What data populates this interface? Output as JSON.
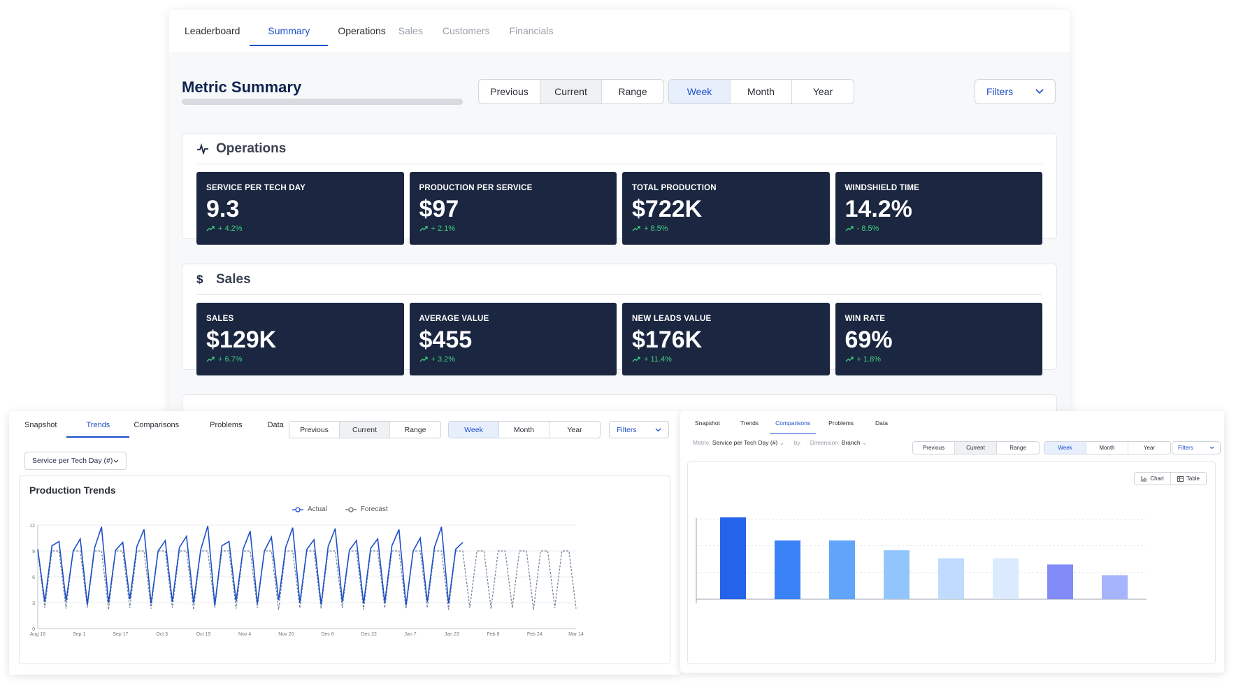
{
  "main": {
    "tabs": [
      {
        "label": "Leaderboard"
      },
      {
        "label": "Summary"
      },
      {
        "label": "Operations"
      },
      {
        "label": "Sales"
      },
      {
        "label": "Customers"
      },
      {
        "label": "Financials"
      }
    ],
    "title": "Metric Summary",
    "period": [
      "Previous",
      "Current",
      "Range"
    ],
    "granularity": [
      "Week",
      "Month",
      "Year"
    ],
    "filters_label": "Filters",
    "operations": {
      "title": "Operations",
      "cards": [
        {
          "label": "SERVICE PER TECH DAY",
          "value": "9.3",
          "delta": "+ 4.2%"
        },
        {
          "label": "PRODUCTION PER SERVICE",
          "value": "$97",
          "delta": "+ 2.1%"
        },
        {
          "label": "TOTAL PRODUCTION",
          "value": "$722K",
          "delta": "+ 8.5%"
        },
        {
          "label": "WINDSHIELD TIME",
          "value": "14.2%",
          "delta": "- 8.5%"
        }
      ]
    },
    "sales": {
      "title": "Sales",
      "cards": [
        {
          "label": "SALES",
          "value": "$129K",
          "delta": "+ 6.7%"
        },
        {
          "label": "AVERAGE VALUE",
          "value": "$455",
          "delta": "+ 3.2%"
        },
        {
          "label": "NEW LEADS VALUE",
          "value": "$176K",
          "delta": "+ 11.4%"
        },
        {
          "label": "WIN RATE",
          "value": "69%",
          "delta": "+ 1.8%"
        }
      ]
    }
  },
  "trends": {
    "tabs": [
      {
        "label": "Snapshot"
      },
      {
        "label": "Trends"
      },
      {
        "label": "Comparisons"
      },
      {
        "label": "Problems"
      },
      {
        "label": "Data"
      }
    ],
    "period": [
      "Previous",
      "Current",
      "Range"
    ],
    "granularity": [
      "Week",
      "Month",
      "Year"
    ],
    "filters_label": "Filters",
    "metric_select": "Service per Tech Day (#)",
    "chart_title": "Production Trends",
    "legend_actual": "Actual",
    "legend_forecast": "Forecast"
  },
  "comparisons": {
    "tabs": [
      {
        "label": "Snapshot"
      },
      {
        "label": "Trends"
      },
      {
        "label": "Comparisons"
      },
      {
        "label": "Problems"
      },
      {
        "label": "Data"
      }
    ],
    "metric_label": "Metric:",
    "metric_value": "Service per Tech Day (#)",
    "by_label": "by",
    "dimension_label": "Dimension:",
    "dimension_value": "Branch",
    "period": [
      "Previous",
      "Current",
      "Range"
    ],
    "granularity": [
      "Week",
      "Month",
      "Year"
    ],
    "filters_label": "Filters",
    "view_chart": "Chart",
    "view_table": "Table"
  },
  "chart_data": [
    {
      "type": "line",
      "title": "Production Trends",
      "x_tick_labels": [
        "Aug 16",
        "Sep 1",
        "Sep 17",
        "Oct 3",
        "Oct 19",
        "Nov 4",
        "Nov 20",
        "Dec 6",
        "Dec 22",
        "Jan 7",
        "Jan 23",
        "Feb 8",
        "Feb 24",
        "Mar 14"
      ],
      "y_ticks": [
        0,
        3,
        6,
        9,
        12
      ],
      "ylim": [
        0,
        12
      ],
      "series": [
        {
          "name": "Actual",
          "style": "solid",
          "values": [
            9.2,
            3.1,
            9.6,
            10.1,
            3.2,
            9.0,
            10.4,
            2.8,
            9.3,
            11.8,
            3.0,
            9.1,
            10.0,
            3.4,
            9.5,
            11.5,
            2.9,
            9.0,
            10.2,
            3.1,
            9.4,
            10.7,
            3.0,
            9.1,
            11.9,
            2.7,
            9.6,
            10.1,
            3.2,
            9.2,
            11.3,
            2.9,
            9.0,
            10.6,
            3.3,
            9.4,
            11.7,
            3.0,
            9.2,
            10.3,
            2.8,
            9.5,
            11.6,
            3.1,
            9.1,
            10.2,
            2.9,
            9.3,
            10.4,
            3.0,
            9.6,
            11.5,
            2.7,
            9.0,
            10.5,
            3.1,
            9.4,
            11.8,
            2.9,
            9.2,
            10.0
          ]
        },
        {
          "name": "Forecast",
          "style": "dashed",
          "values": [
            9.0,
            2.4,
            9.0,
            9.0,
            2.3,
            9.0,
            9.0,
            2.4,
            9.0,
            9.0,
            2.2,
            9.0,
            9.0,
            2.4,
            9.0,
            9.0,
            2.3,
            9.0,
            9.0,
            2.4,
            9.0,
            9.0,
            2.2,
            9.0,
            9.0,
            2.4,
            9.0,
            9.0,
            2.3,
            9.0,
            9.0,
            2.4,
            9.0,
            9.0,
            2.2,
            9.0,
            9.0,
            2.4,
            9.0,
            9.0,
            2.3,
            9.0,
            9.0,
            2.4,
            9.0,
            9.0,
            2.2,
            9.0,
            9.0,
            2.4,
            9.0,
            9.0,
            2.3,
            9.0,
            9.0,
            2.4,
            9.0,
            9.0,
            2.2,
            9.0,
            9.0,
            2.4,
            9.0,
            9.0,
            2.3,
            9.0,
            9.0,
            2.4,
            9.0,
            9.0,
            2.2,
            9.0,
            9.0,
            2.4,
            9.0,
            9.0,
            2.3
          ]
        }
      ]
    },
    {
      "type": "bar",
      "title": "",
      "ylim": [
        0,
        11
      ],
      "values": [
        9.2,
        6.6,
        6.6,
        5.5,
        4.6,
        4.6,
        3.9,
        2.7
      ],
      "colors": [
        "#2563eb",
        "#3b82f6",
        "#60a5fa",
        "#93c5fd",
        "#bfdbfe",
        "#dbeafe",
        "#818cf8",
        "#a5b4fc"
      ]
    }
  ]
}
